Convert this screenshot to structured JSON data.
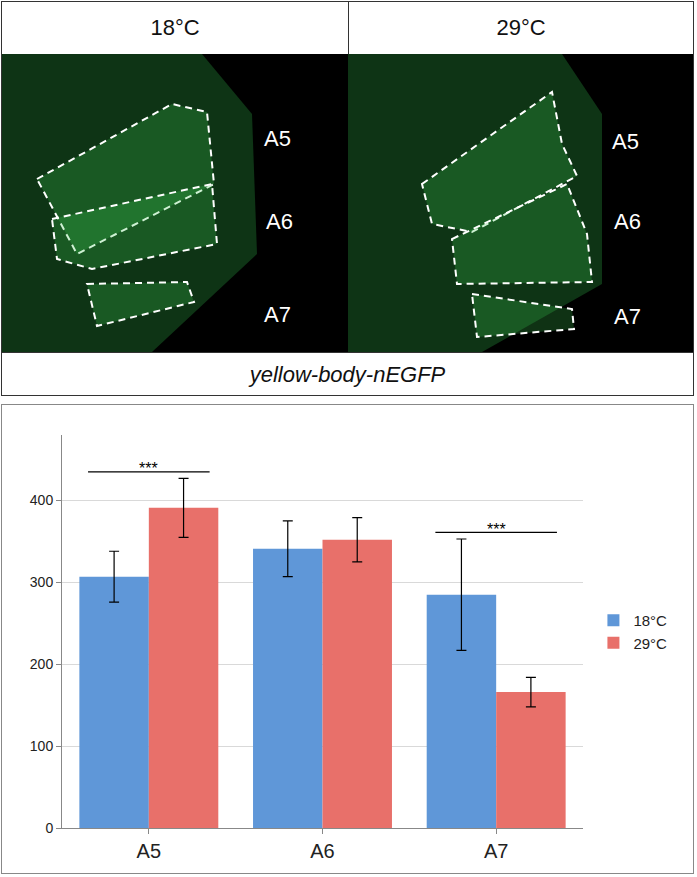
{
  "image_panel": {
    "columns": [
      "18°C",
      "29°C"
    ],
    "segment_labels": [
      "A5",
      "A6",
      "A7"
    ],
    "caption": "yellow-body-nEGFP"
  },
  "chart_data": {
    "type": "bar",
    "categories": [
      "A5",
      "A6",
      "A7"
    ],
    "series": [
      {
        "name": "18°C",
        "color": "#5f97d8",
        "values": [
          307,
          341,
          285
        ],
        "errors": [
          31,
          34,
          68
        ]
      },
      {
        "name": "29°C",
        "color": "#e8706a",
        "values": [
          391,
          352,
          166
        ],
        "errors": [
          36,
          27,
          18
        ]
      }
    ],
    "significance": [
      {
        "category": "A5",
        "text": "***"
      },
      {
        "category": "A7",
        "text": "***"
      }
    ],
    "ylim": [
      0,
      480
    ],
    "yticks": [
      0,
      100,
      200,
      300,
      400
    ],
    "grid": true,
    "legend": "right"
  }
}
